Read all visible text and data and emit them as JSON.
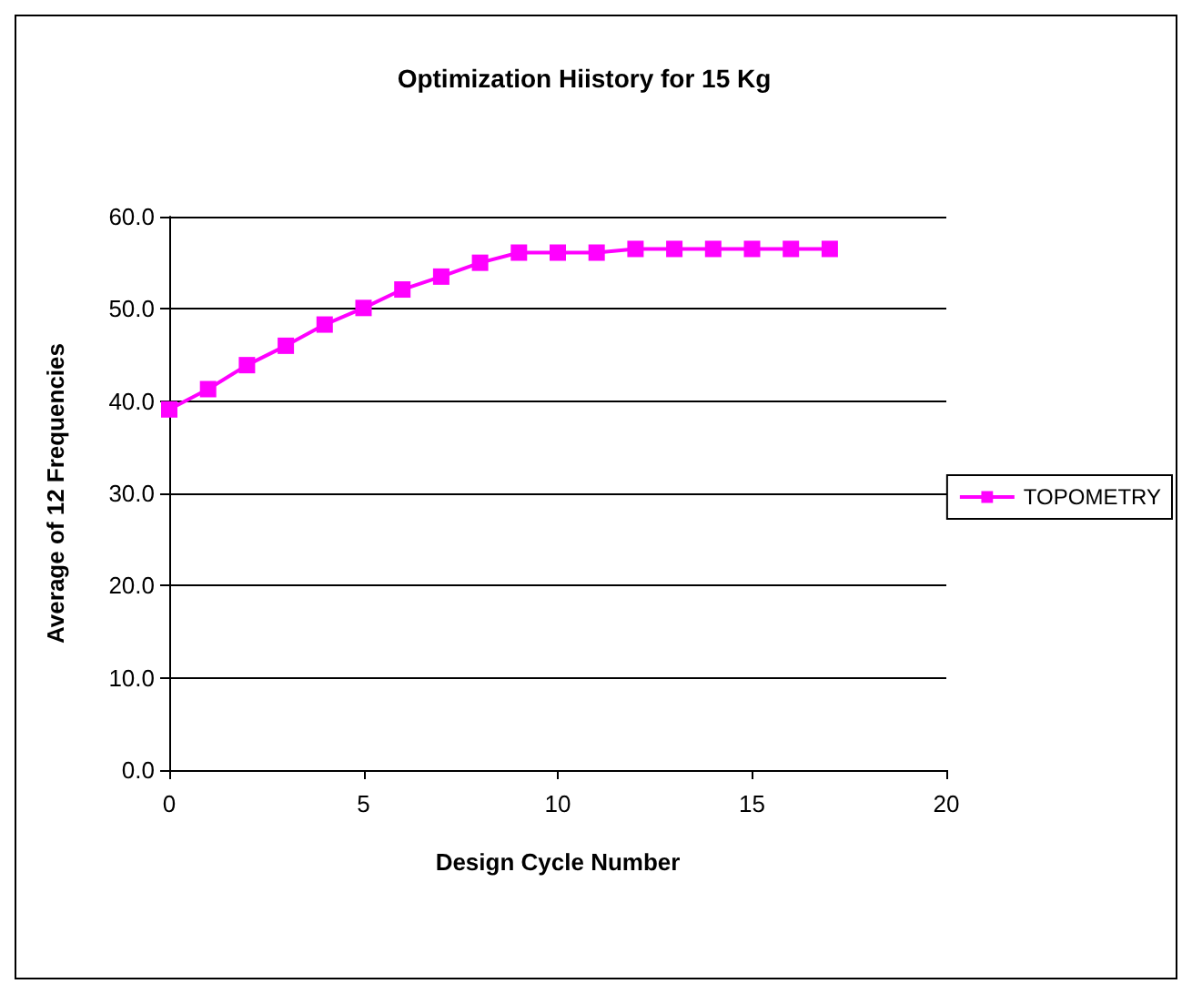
{
  "chart_data": {
    "type": "line",
    "title": "Optimization Hiistory for 15 Kg",
    "xlabel": "Design Cycle Number",
    "ylabel": "Average of 12 Frequencies",
    "x": [
      0,
      1,
      2,
      3,
      4,
      5,
      6,
      7,
      8,
      9,
      10,
      11,
      12,
      13,
      14,
      15,
      16,
      17
    ],
    "series": [
      {
        "name": "TOPOMETRY",
        "color": "#ff00ff",
        "values": [
          39.1,
          41.3,
          43.9,
          46.0,
          48.3,
          50.1,
          52.1,
          53.5,
          55.0,
          56.1,
          56.1,
          56.1,
          56.5,
          56.5,
          56.5,
          56.5,
          56.5,
          56.5
        ]
      }
    ],
    "xlim": [
      0,
      20
    ],
    "xticks": [
      0,
      5,
      10,
      15,
      20
    ],
    "ylim": [
      0,
      60
    ],
    "yticks": [
      {
        "value": 0,
        "label": "0.0"
      },
      {
        "value": 10,
        "label": "10.0"
      },
      {
        "value": 20,
        "label": "20.0"
      },
      {
        "value": 30,
        "label": "30.0"
      },
      {
        "value": 40,
        "label": "40.0"
      },
      {
        "value": 50,
        "label": "50.0"
      },
      {
        "value": 60,
        "label": "60.0"
      }
    ],
    "grid": "y",
    "legend": "right",
    "marker": "square",
    "line_style": "solid"
  }
}
